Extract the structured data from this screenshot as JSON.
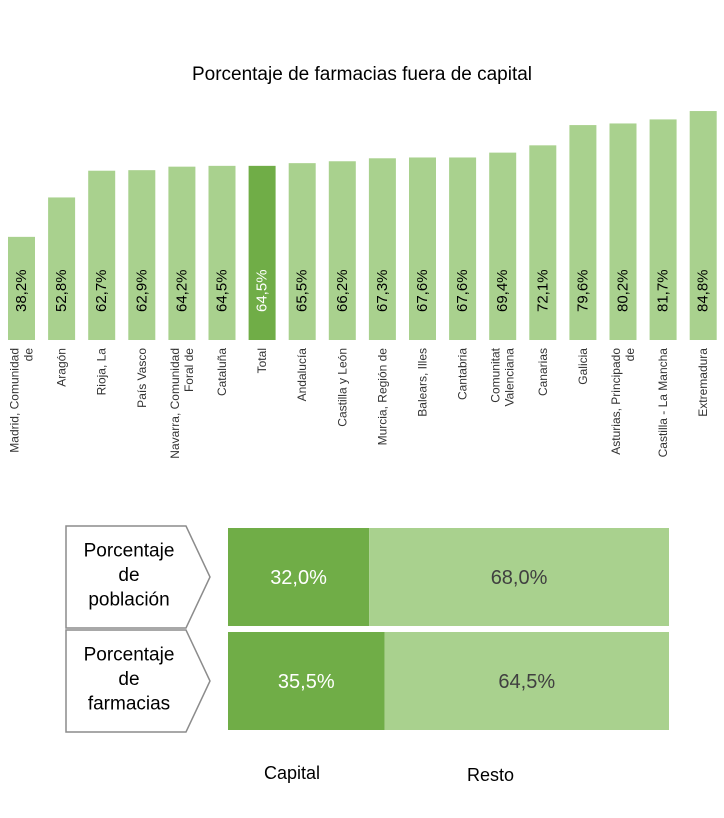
{
  "chart_data": [
    {
      "type": "bar",
      "title": "Porcentaje de farmacias fuera de capital",
      "categories": [
        [
          "Madrid, Comunidad",
          "de"
        ],
        [
          "Aragón"
        ],
        [
          "Rioja, La"
        ],
        [
          "País Vasco"
        ],
        [
          "Navarra, Comunidad",
          "Foral de"
        ],
        [
          "Cataluña"
        ],
        [
          "Total"
        ],
        [
          "Andalucía"
        ],
        [
          "Castilla y León"
        ],
        [
          "Murcia, Región de"
        ],
        [
          "Balears, Illes"
        ],
        [
          "Cantabria"
        ],
        [
          "Comunitat",
          "Valenciana"
        ],
        [
          "Canarias"
        ],
        [
          "Galicia"
        ],
        [
          "Asturias, Principado",
          "de"
        ],
        [
          "Castilla - La Mancha"
        ],
        [
          "Extremadura"
        ]
      ],
      "values": [
        38.2,
        52.8,
        62.7,
        62.9,
        64.2,
        64.5,
        64.5,
        65.5,
        66.2,
        67.3,
        67.6,
        67.6,
        69.4,
        72.1,
        79.6,
        80.2,
        81.7,
        84.8
      ],
      "value_labels": [
        "38,2%",
        "52,8%",
        "62,7%",
        "62,9%",
        "64,2%",
        "64,5%",
        "64,5%",
        "65,5%",
        "66,2%",
        "67,3%",
        "67,6%",
        "67,6%",
        "69,4%",
        "72,1%",
        "79,6%",
        "80,2%",
        "81,7%",
        "84,8%"
      ],
      "highlight_index": 6,
      "xlabel": "",
      "ylabel": "",
      "ylim": [
        0,
        100
      ],
      "colors": {
        "bar": "#a9d18e",
        "highlight": "#70ad47"
      }
    },
    {
      "type": "bar",
      "orientation": "horizontal-stacked",
      "rows": [
        {
          "label_lines": [
            "Porcentaje",
            "de",
            "población"
          ],
          "values": [
            32.0,
            68.0
          ],
          "value_labels": [
            "32,0%",
            "68,0%"
          ]
        },
        {
          "label_lines": [
            "Porcentaje",
            "de",
            "farmacias"
          ],
          "values": [
            35.5,
            64.5
          ],
          "value_labels": [
            "35,5%",
            "64,5%"
          ]
        }
      ],
      "series": [
        {
          "name": "Capital",
          "color": "#70ad47",
          "text_color": "#ffffff"
        },
        {
          "name": "Resto",
          "color": "#a9d18e",
          "text_color": "#404040"
        }
      ],
      "xlim": [
        0,
        100
      ]
    }
  ]
}
